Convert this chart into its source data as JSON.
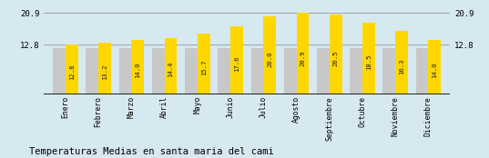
{
  "months": [
    "Enero",
    "Febrero",
    "Marzo",
    "Abril",
    "Mayo",
    "Junio",
    "Julio",
    "Agosto",
    "Septiembre",
    "Octubre",
    "Noviembre",
    "Diciembre"
  ],
  "values": [
    12.8,
    13.2,
    14.0,
    14.4,
    15.7,
    17.6,
    20.0,
    20.9,
    20.5,
    18.5,
    16.3,
    14.0
  ],
  "gray_values": [
    12.0,
    12.0,
    12.0,
    12.0,
    12.0,
    12.0,
    12.0,
    12.0,
    12.0,
    12.0,
    12.0,
    12.0
  ],
  "yellow_color": "#FFD700",
  "gray_color": "#C8C8C8",
  "background_color": "#D6E8F0",
  "ymin": 0,
  "ymax": 22.6,
  "yticks": [
    12.8,
    20.9
  ],
  "hline_y1": 20.9,
  "hline_y2": 12.8,
  "title": "Temperaturas Medias en santa maria del cami",
  "title_fontsize": 7.5,
  "bar_width": 0.38,
  "value_fontsize": 5.2,
  "tick_fontsize": 5.8,
  "ytick_fontsize": 6.5
}
